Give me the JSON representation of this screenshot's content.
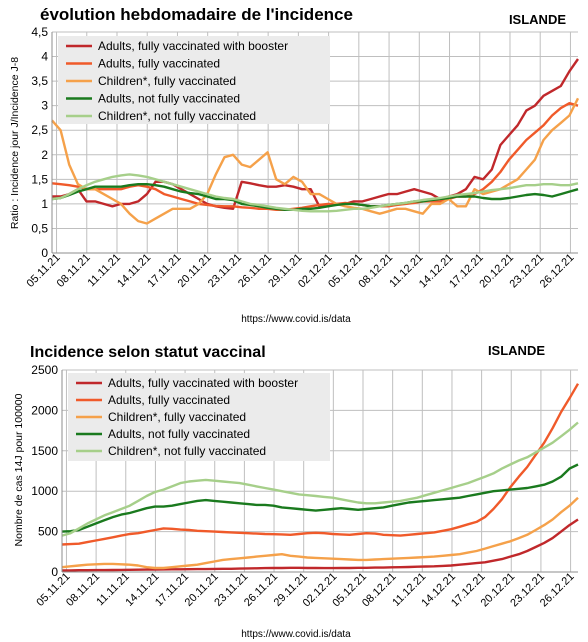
{
  "chart_data": [
    {
      "type": "line",
      "title": "évolution hebdomadaire de l'incidence",
      "country": "ISLANDE",
      "ylabel": "Ratio : Incidence jour J/Incidence J-8",
      "source": "https://www.covid.is/data",
      "ylim": [
        0,
        4.5
      ],
      "yticks": [
        "0",
        "0,5",
        "1",
        "1,5",
        "2",
        "2,5",
        "3",
        "3,5",
        "4",
        "4,5"
      ],
      "x_tick_labels": [
        "05.11.21",
        "08.11.21",
        "11.11.21",
        "14.11.21",
        "17.11.21",
        "20.11.21",
        "23.11.21",
        "26.11.21",
        "29.11.21",
        "02.12.21",
        "05.12.21",
        "08.12.21",
        "11.12.21",
        "14.12.21",
        "17.12.21",
        "20.12.21",
        "23.12.21",
        "26.12.21"
      ],
      "grid": true,
      "legend_position": "top-left",
      "series": [
        {
          "name": "Adults, fully vaccinated with booster",
          "color": "#c0282b",
          "values": [
            1.15,
            1.15,
            1.2,
            1.3,
            1.05,
            1.05,
            1.0,
            0.95,
            1.0,
            1.0,
            1.05,
            1.2,
            1.45,
            1.45,
            1.4,
            1.3,
            1.2,
            1.1,
            1.0,
            0.95,
            0.92,
            0.9,
            1.45,
            1.42,
            1.38,
            1.35,
            1.35,
            1.38,
            1.35,
            1.3,
            1.3,
            0.95,
            0.95,
            1.0,
            1.0,
            1.05,
            1.05,
            1.1,
            1.15,
            1.2,
            1.2,
            1.25,
            1.3,
            1.25,
            1.2,
            1.1,
            1.15,
            1.2,
            1.3,
            1.55,
            1.5,
            1.7,
            2.2,
            2.4,
            2.6,
            2.9,
            3.0,
            3.2,
            3.3,
            3.4,
            3.7,
            3.95
          ]
        },
        {
          "name": "Adults, fully vaccinated",
          "color": "#f05a2a",
          "values": [
            1.42,
            1.4,
            1.38,
            1.35,
            1.3,
            1.3,
            1.3,
            1.3,
            1.3,
            1.35,
            1.38,
            1.35,
            1.3,
            1.2,
            1.15,
            1.1,
            1.05,
            1.0,
            0.98,
            0.96,
            0.95,
            0.95,
            0.93,
            0.92,
            0.9,
            0.9,
            0.88,
            0.88,
            0.9,
            0.92,
            0.95,
            0.98,
            1.0,
            1.0,
            1.02,
            1.0,
            0.98,
            0.95,
            0.95,
            0.95,
            0.98,
            1.0,
            1.02,
            1.05,
            1.05,
            1.05,
            1.1,
            1.15,
            1.15,
            1.2,
            1.3,
            1.45,
            1.65,
            1.9,
            2.1,
            2.3,
            2.45,
            2.6,
            2.8,
            2.95,
            3.05,
            3.0
          ]
        },
        {
          "name": "Children*, fully vaccinated",
          "color": "#f5a14a",
          "values": [
            2.7,
            2.5,
            1.8,
            1.4,
            1.3,
            1.3,
            1.2,
            1.1,
            1.0,
            0.8,
            0.65,
            0.6,
            0.7,
            0.8,
            0.9,
            0.9,
            0.9,
            1.0,
            1.2,
            1.6,
            1.95,
            2.0,
            1.8,
            1.75,
            1.9,
            2.05,
            1.5,
            1.4,
            1.55,
            1.45,
            1.2,
            1.2,
            1.1,
            1.0,
            0.95,
            0.92,
            0.9,
            0.85,
            0.8,
            0.85,
            0.9,
            0.9,
            0.85,
            0.8,
            1.0,
            1.0,
            1.1,
            0.95,
            0.95,
            1.3,
            1.2,
            1.25,
            1.3,
            1.4,
            1.5,
            1.7,
            1.9,
            2.3,
            2.5,
            2.65,
            2.8,
            3.15
          ]
        },
        {
          "name": "Adults, not fully vaccinated",
          "color": "#1a7a1e",
          "values": [
            1.1,
            1.12,
            1.18,
            1.25,
            1.3,
            1.35,
            1.35,
            1.35,
            1.35,
            1.38,
            1.4,
            1.4,
            1.38,
            1.35,
            1.3,
            1.25,
            1.22,
            1.2,
            1.15,
            1.1,
            1.1,
            1.08,
            1.0,
            0.98,
            0.95,
            0.92,
            0.9,
            0.88,
            0.88,
            0.9,
            0.9,
            0.92,
            0.95,
            0.98,
            1.0,
            1.0,
            0.98,
            0.95,
            0.95,
            0.98,
            1.0,
            1.02,
            1.05,
            1.05,
            1.08,
            1.1,
            1.12,
            1.15,
            1.15,
            1.15,
            1.12,
            1.1,
            1.1,
            1.12,
            1.15,
            1.18,
            1.2,
            1.18,
            1.15,
            1.2,
            1.25,
            1.3
          ]
        },
        {
          "name": "Children*, not fully vaccinated",
          "color": "#a6cf8a",
          "values": [
            1.1,
            1.12,
            1.2,
            1.3,
            1.38,
            1.45,
            1.5,
            1.55,
            1.58,
            1.6,
            1.58,
            1.55,
            1.5,
            1.45,
            1.4,
            1.35,
            1.3,
            1.25,
            1.2,
            1.15,
            1.12,
            1.1,
            1.05,
            1.0,
            0.98,
            0.95,
            0.92,
            0.9,
            0.88,
            0.86,
            0.85,
            0.85,
            0.85,
            0.86,
            0.88,
            0.9,
            0.9,
            0.92,
            0.95,
            0.98,
            1.0,
            1.02,
            1.05,
            1.08,
            1.1,
            1.12,
            1.15,
            1.18,
            1.2,
            1.22,
            1.25,
            1.28,
            1.3,
            1.32,
            1.35,
            1.38,
            1.38,
            1.4,
            1.4,
            1.38,
            1.38,
            1.42
          ]
        }
      ]
    },
    {
      "type": "line",
      "title": "Incidence selon statut vaccinal",
      "country": "ISLANDE",
      "ylabel": "Nombre de cas 14J pour 100000",
      "source": "https://www.covid.is/data",
      "ylim": [
        0,
        2500
      ],
      "yticks": [
        "0",
        "500",
        "1000",
        "1500",
        "2000",
        "2500"
      ],
      "x_tick_labels": [
        "05.11.21",
        "08.11.21",
        "11.11.21",
        "14.11.21",
        "17.11.21",
        "20.11.21",
        "23.11.21",
        "26.11.21",
        "29.11.21",
        "02.12.21",
        "05.12.21",
        "08.12.21",
        "11.12.21",
        "14.12.21",
        "17.12.21",
        "20.12.21",
        "23.12.21",
        "26.12.21"
      ],
      "grid": true,
      "legend_position": "top-left",
      "series": [
        {
          "name": "Adults, fully vaccinated with booster",
          "color": "#c0282b",
          "values": [
            20,
            20,
            22,
            22,
            24,
            24,
            25,
            26,
            27,
            28,
            30,
            30,
            32,
            33,
            34,
            35,
            36,
            36,
            38,
            40,
            40,
            42,
            44,
            46,
            48,
            50,
            50,
            52,
            52,
            50,
            50,
            48,
            48,
            50,
            50,
            52,
            52,
            54,
            55,
            58,
            60,
            62,
            65,
            68,
            70,
            75,
            80,
            90,
            100,
            110,
            120,
            140,
            160,
            190,
            220,
            260,
            310,
            360,
            420,
            500,
            580,
            650
          ]
        },
        {
          "name": "Adults, fully vaccinated",
          "color": "#f05a2a",
          "values": [
            340,
            345,
            350,
            370,
            390,
            410,
            430,
            450,
            470,
            480,
            500,
            520,
            540,
            535,
            525,
            520,
            510,
            505,
            500,
            495,
            490,
            485,
            480,
            475,
            470,
            468,
            465,
            460,
            470,
            480,
            485,
            480,
            470,
            465,
            460,
            470,
            480,
            475,
            460,
            455,
            450,
            460,
            470,
            480,
            490,
            510,
            530,
            560,
            590,
            620,
            680,
            780,
            900,
            1050,
            1180,
            1300,
            1450,
            1600,
            1780,
            1980,
            2150,
            2330
          ]
        },
        {
          "name": "Children*, fully vaccinated",
          "color": "#f5a14a",
          "values": [
            60,
            70,
            80,
            90,
            95,
            100,
            100,
            95,
            90,
            80,
            60,
            50,
            50,
            60,
            70,
            80,
            90,
            110,
            130,
            150,
            160,
            170,
            180,
            190,
            200,
            210,
            220,
            200,
            190,
            180,
            175,
            170,
            165,
            160,
            155,
            150,
            150,
            155,
            160,
            165,
            170,
            175,
            180,
            185,
            190,
            200,
            210,
            220,
            240,
            260,
            290,
            320,
            350,
            380,
            420,
            460,
            520,
            580,
            650,
            740,
            820,
            920
          ]
        },
        {
          "name": "Adults, not fully vaccinated",
          "color": "#1a7a1e",
          "values": [
            500,
            505,
            520,
            560,
            600,
            640,
            680,
            710,
            730,
            760,
            790,
            810,
            810,
            820,
            840,
            860,
            880,
            890,
            880,
            870,
            860,
            850,
            840,
            830,
            830,
            820,
            800,
            790,
            780,
            770,
            760,
            770,
            780,
            790,
            780,
            770,
            780,
            790,
            800,
            820,
            840,
            860,
            870,
            880,
            890,
            900,
            910,
            920,
            940,
            960,
            980,
            1000,
            1010,
            1020,
            1030,
            1040,
            1060,
            1080,
            1120,
            1180,
            1280,
            1330
          ]
        },
        {
          "name": "Children*, not fully vaccinated",
          "color": "#a6cf8a",
          "values": [
            450,
            480,
            540,
            600,
            650,
            700,
            740,
            780,
            820,
            880,
            940,
            990,
            1020,
            1060,
            1100,
            1120,
            1130,
            1140,
            1130,
            1120,
            1110,
            1100,
            1080,
            1060,
            1040,
            1020,
            1000,
            980,
            960,
            950,
            940,
            930,
            920,
            900,
            880,
            860,
            850,
            850,
            860,
            870,
            880,
            900,
            920,
            950,
            980,
            1010,
            1040,
            1070,
            1100,
            1140,
            1180,
            1220,
            1280,
            1330,
            1380,
            1420,
            1480,
            1540,
            1600,
            1680,
            1760,
            1850
          ]
        }
      ]
    }
  ]
}
